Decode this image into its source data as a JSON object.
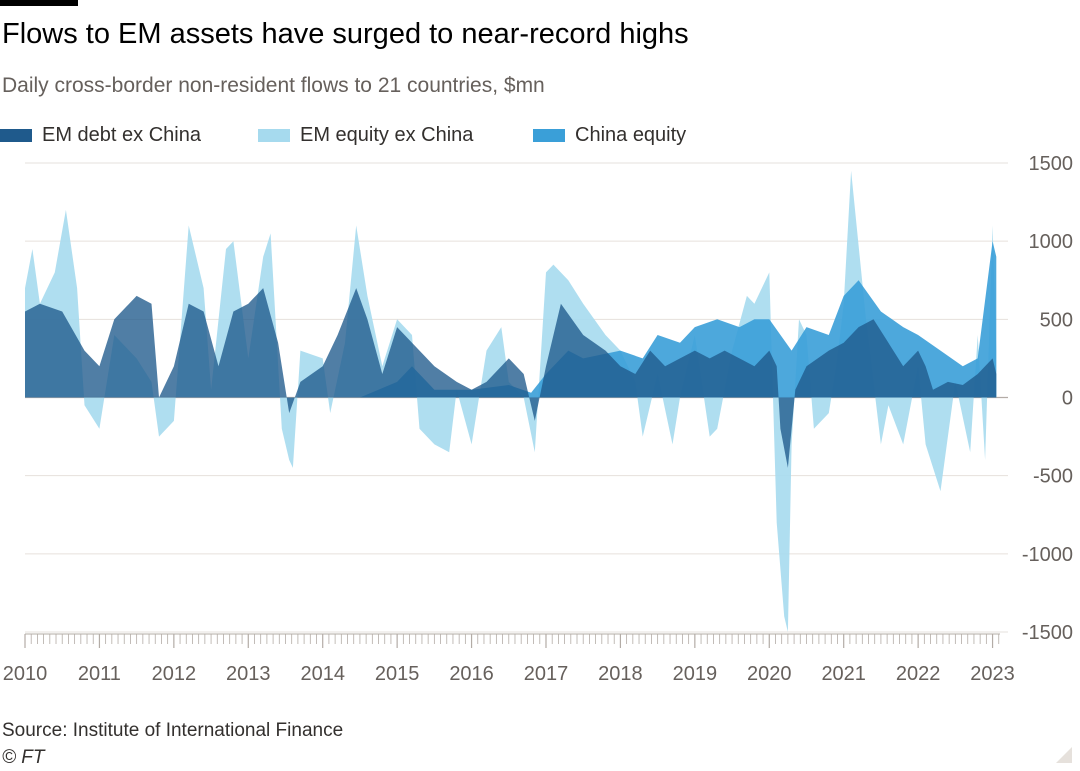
{
  "header": {
    "title": "Flows to EM assets have surged to near-record highs",
    "subtitle": "Daily cross-border non-resident flows to 21 countries, $mn"
  },
  "footer": {
    "source": "Source: Institute of International Finance",
    "copyright": "© FT"
  },
  "colors": {
    "debt": "#1f5a8c",
    "em_equity": "#a6daee",
    "china_equity": "#3a9fd8",
    "grid": "#e6e1dc",
    "text": "#66605c"
  },
  "chart_data": {
    "type": "area",
    "title": "Flows to EM assets have surged to near-record highs",
    "subtitle": "Daily cross-border non-resident flows to 21 countries, $mn",
    "xlabel": "",
    "ylabel": "",
    "ylim": [
      -1500,
      1500
    ],
    "xlim": [
      2010.0,
      2023.1
    ],
    "y_ticks": [
      "1500",
      "1000",
      "500",
      "0",
      "-500",
      "-1000",
      "-1500"
    ],
    "y_tick_values": [
      1500,
      1000,
      500,
      0,
      -500,
      -1000,
      -1500
    ],
    "x_ticks": [
      "2010",
      "2011",
      "2012",
      "2013",
      "2014",
      "2015",
      "2016",
      "2017",
      "2018",
      "2019",
      "2020",
      "2021",
      "2022",
      "2023"
    ],
    "x_tick_values": [
      2010,
      2011,
      2012,
      2013,
      2014,
      2015,
      2016,
      2017,
      2018,
      2019,
      2020,
      2021,
      2022,
      2023
    ],
    "legend_position": "top-left",
    "grid": true,
    "series": [
      {
        "name": "EM debt ex China",
        "color": "#1f5a8c",
        "x": [
          2010.0,
          2010.2,
          2010.5,
          2010.8,
          2011.0,
          2011.2,
          2011.5,
          2011.7,
          2011.8,
          2012.0,
          2012.2,
          2012.4,
          2012.6,
          2012.8,
          2013.0,
          2013.2,
          2013.4,
          2013.55,
          2013.7,
          2014.0,
          2014.2,
          2014.45,
          2014.6,
          2014.8,
          2015.0,
          2015.2,
          2015.5,
          2015.8,
          2016.0,
          2016.2,
          2016.5,
          2016.7,
          2016.75,
          2016.85,
          2017.0,
          2017.2,
          2017.5,
          2017.8,
          2018.0,
          2018.2,
          2018.4,
          2018.6,
          2018.8,
          2019.0,
          2019.2,
          2019.4,
          2019.6,
          2019.8,
          2020.0,
          2020.1,
          2020.15,
          2020.25,
          2020.35,
          2020.5,
          2020.8,
          2021.0,
          2021.2,
          2021.4,
          2021.6,
          2021.8,
          2022.0,
          2022.1,
          2022.2,
          2022.4,
          2022.6,
          2022.8,
          2023.0,
          2023.05
        ],
        "values": [
          550,
          600,
          550,
          300,
          200,
          500,
          650,
          600,
          0,
          200,
          600,
          550,
          200,
          550,
          600,
          700,
          350,
          -100,
          100,
          200,
          400,
          700,
          500,
          150,
          450,
          350,
          200,
          100,
          50,
          100,
          250,
          150,
          50,
          -150,
          200,
          600,
          400,
          300,
          200,
          150,
          300,
          200,
          250,
          300,
          250,
          300,
          250,
          200,
          300,
          200,
          -200,
          -450,
          50,
          200,
          300,
          350,
          450,
          500,
          350,
          200,
          300,
          200,
          50,
          100,
          80,
          150,
          250,
          150
        ]
      },
      {
        "name": "EM equity ex China",
        "color": "#a6daee",
        "x": [
          2010.0,
          2010.1,
          2010.2,
          2010.4,
          2010.55,
          2010.7,
          2010.8,
          2011.0,
          2011.2,
          2011.5,
          2011.7,
          2011.8,
          2012.0,
          2012.2,
          2012.4,
          2012.5,
          2012.7,
          2012.8,
          2013.0,
          2013.2,
          2013.3,
          2013.45,
          2013.55,
          2013.6,
          2013.7,
          2014.0,
          2014.1,
          2014.3,
          2014.45,
          2014.6,
          2014.8,
          2015.0,
          2015.2,
          2015.3,
          2015.5,
          2015.7,
          2015.8,
          2016.0,
          2016.2,
          2016.4,
          2016.5,
          2016.7,
          2016.85,
          2017.0,
          2017.1,
          2017.3,
          2017.5,
          2017.8,
          2018.0,
          2018.2,
          2018.3,
          2018.5,
          2018.7,
          2018.8,
          2019.0,
          2019.2,
          2019.3,
          2019.5,
          2019.7,
          2019.8,
          2020.0,
          2020.05,
          2020.1,
          2020.2,
          2020.25,
          2020.3,
          2020.4,
          2020.5,
          2020.6,
          2020.8,
          2020.9,
          2021.0,
          2021.1,
          2021.3,
          2021.5,
          2021.6,
          2021.8,
          2022.0,
          2022.1,
          2022.3,
          2022.5,
          2022.7,
          2022.8,
          2022.9,
          2023.0,
          2023.05
        ],
        "values": [
          700,
          950,
          600,
          800,
          1200,
          700,
          -50,
          -200,
          400,
          250,
          100,
          -250,
          -150,
          1100,
          700,
          50,
          950,
          1000,
          250,
          900,
          1050,
          -200,
          -400,
          -450,
          300,
          250,
          -100,
          350,
          1100,
          650,
          200,
          500,
          400,
          -200,
          -300,
          -350,
          50,
          -300,
          300,
          450,
          100,
          0,
          -350,
          800,
          850,
          750,
          600,
          400,
          300,
          100,
          -250,
          150,
          -300,
          0,
          400,
          -250,
          -200,
          300,
          650,
          600,
          800,
          0,
          -800,
          -1400,
          -1500,
          -300,
          500,
          400,
          -200,
          -100,
          200,
          600,
          1450,
          500,
          -300,
          -50,
          -300,
          200,
          -300,
          -600,
          100,
          -350,
          400,
          -400,
          1100,
          300
        ]
      },
      {
        "name": "China equity",
        "color": "#3a9fd8",
        "x": [
          2010.0,
          2010.5,
          2011.0,
          2011.5,
          2012.0,
          2012.5,
          2013.0,
          2013.5,
          2014.0,
          2014.5,
          2015.0,
          2015.2,
          2015.5,
          2016.0,
          2016.5,
          2016.8,
          2017.0,
          2017.3,
          2017.5,
          2018.0,
          2018.3,
          2018.5,
          2018.8,
          2019.0,
          2019.3,
          2019.6,
          2019.8,
          2020.0,
          2020.3,
          2020.5,
          2020.8,
          2021.0,
          2021.2,
          2021.5,
          2021.8,
          2022.0,
          2022.3,
          2022.6,
          2022.8,
          2023.0,
          2023.05
        ],
        "values": [
          0,
          0,
          0,
          0,
          0,
          0,
          0,
          0,
          0,
          0,
          100,
          200,
          50,
          50,
          80,
          30,
          150,
          300,
          250,
          300,
          250,
          400,
          350,
          450,
          500,
          450,
          500,
          500,
          300,
          450,
          400,
          650,
          750,
          550,
          450,
          400,
          300,
          200,
          250,
          1000,
          900
        ]
      }
    ]
  }
}
